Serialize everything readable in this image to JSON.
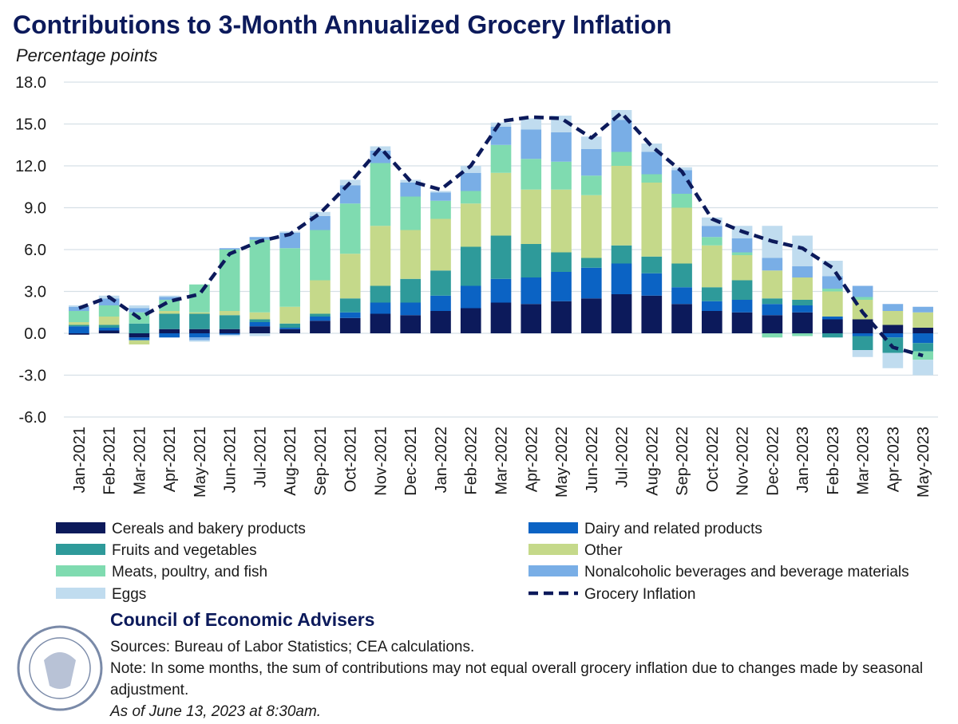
{
  "chart_data": {
    "type": "bar",
    "stacked": true,
    "title": "Contributions to 3-Month Annualized Grocery Inflation",
    "y_label": "Percentage points",
    "categories": [
      "Jan-2021",
      "Feb-2021",
      "Mar-2021",
      "Apr-2021",
      "May-2021",
      "Jun-2021",
      "Jul-2021",
      "Aug-2021",
      "Sep-2021",
      "Oct-2021",
      "Nov-2021",
      "Dec-2021",
      "Jan-2022",
      "Feb-2022",
      "Mar-2022",
      "Apr-2022",
      "May-2022",
      "Jun-2022",
      "Jul-2022",
      "Aug-2022",
      "Sep-2022",
      "Oct-2022",
      "Nov-2022",
      "Dec-2022",
      "Jan-2023",
      "Feb-2023",
      "Mar-2023",
      "Apr-2023",
      "May-2023"
    ],
    "series": [
      {
        "name": "Cereals and bakery products",
        "color": "#0c1a5b",
        "values": [
          -0.1,
          0.2,
          -0.3,
          0.3,
          0.3,
          0.3,
          0.5,
          0.3,
          0.9,
          1.1,
          1.4,
          1.3,
          1.6,
          1.8,
          2.2,
          2.1,
          2.3,
          2.5,
          2.8,
          2.7,
          2.1,
          1.6,
          1.5,
          1.3,
          1.5,
          1.0,
          1.0,
          0.6,
          0.4
        ]
      },
      {
        "name": "Dairy and related products",
        "color": "#0b63c4",
        "values": [
          0.5,
          0.2,
          -0.2,
          -0.3,
          -0.3,
          -0.1,
          0.3,
          0.1,
          0.3,
          0.4,
          0.8,
          0.9,
          1.1,
          1.6,
          1.7,
          1.9,
          2.1,
          2.2,
          2.2,
          1.6,
          1.2,
          0.7,
          0.9,
          0.8,
          0.5,
          0.2,
          -0.2,
          -0.3,
          -0.7
        ]
      },
      {
        "name": "Fruits and vegetables",
        "color": "#2e9a9a",
        "values": [
          0.1,
          0.2,
          0.7,
          1.1,
          1.1,
          1.0,
          0.2,
          0.3,
          0.2,
          1.0,
          1.2,
          1.7,
          1.8,
          2.8,
          3.1,
          2.4,
          1.4,
          0.7,
          1.3,
          1.2,
          1.7,
          1.0,
          1.4,
          0.4,
          0.4,
          -0.3,
          -1.0,
          -1.1,
          -0.6
        ]
      },
      {
        "name": "Other",
        "color": "#c5d98a",
        "values": [
          0.2,
          0.6,
          -0.3,
          0.2,
          0.1,
          0.3,
          0.5,
          1.2,
          2.4,
          3.2,
          4.3,
          3.5,
          3.7,
          3.1,
          4.5,
          3.9,
          4.5,
          4.5,
          5.7,
          5.3,
          4.0,
          3.0,
          1.8,
          2.0,
          1.6,
          1.8,
          1.4,
          1.0,
          1.1
        ]
      },
      {
        "name": "Meats, poultry, and fish",
        "color": "#7fdbb0",
        "values": [
          0.8,
          0.8,
          0.8,
          0.8,
          2.0,
          4.4,
          5.2,
          4.2,
          3.6,
          3.6,
          4.5,
          2.4,
          1.3,
          0.9,
          2.0,
          2.2,
          2.0,
          1.4,
          1.0,
          0.6,
          1.0,
          0.6,
          0.2,
          -0.3,
          -0.2,
          0.2,
          0.2,
          0.0,
          -0.6
        ]
      },
      {
        "name": "Nonalcoholic beverages and beverage materials",
        "color": "#79aee6",
        "values": [
          0.3,
          0.5,
          0.3,
          0.2,
          -0.2,
          0.1,
          0.2,
          1.1,
          1.0,
          1.3,
          0.9,
          1.0,
          0.6,
          1.3,
          1.3,
          2.1,
          2.1,
          1.9,
          2.3,
          1.6,
          1.7,
          0.8,
          1.0,
          0.9,
          0.8,
          0.9,
          0.8,
          0.5,
          0.4
        ]
      },
      {
        "name": "Eggs",
        "color": "#c0dcef",
        "values": [
          0.1,
          0.2,
          0.2,
          0.1,
          -0.1,
          -0.1,
          -0.2,
          0.1,
          0.3,
          0.4,
          0.3,
          0.2,
          0.1,
          0.5,
          0.3,
          0.8,
          1.2,
          0.9,
          0.7,
          0.6,
          0.2,
          0.6,
          0.9,
          2.3,
          2.2,
          1.1,
          -0.5,
          -1.1,
          -1.1
        ]
      },
      {
        "name": "Grocery Inflation",
        "type": "line",
        "dashed": true,
        "color": "#0c1a5b",
        "values": [
          1.8,
          2.6,
          1.1,
          2.3,
          2.8,
          5.7,
          6.6,
          7.1,
          8.6,
          10.8,
          13.3,
          10.9,
          10.3,
          12.0,
          15.2,
          15.5,
          15.4,
          14.0,
          15.8,
          13.4,
          11.6,
          8.2,
          7.3,
          6.6,
          6.1,
          4.7,
          1.5,
          -1.0,
          -1.6
        ]
      }
    ],
    "ylim": [
      -6,
      18
    ],
    "yticks": [
      {
        "value": -6,
        "label": "-6.0"
      },
      {
        "value": -3,
        "label": "-3.0"
      },
      {
        "value": 0,
        "label": "0.0"
      },
      {
        "value": 3,
        "label": "3.0"
      },
      {
        "value": 6,
        "label": "6.0"
      },
      {
        "value": 9,
        "label": "9.0"
      },
      {
        "value": 12,
        "label": "12.0"
      },
      {
        "value": 15,
        "label": "15.0"
      },
      {
        "value": 18,
        "label": "18.0"
      }
    ],
    "grid": true,
    "legend": "bottom"
  },
  "source_block": {
    "organization": "Council of Economic Advisers",
    "sources": "Sources: Bureau of Labor Statistics; CEA calculations.",
    "note": "Note: In some months, the sum of contributions may not equal overall grocery inflation due to changes made by seasonal adjustment.",
    "timestamp": "As of June 13, 2023 at 8:30am."
  }
}
